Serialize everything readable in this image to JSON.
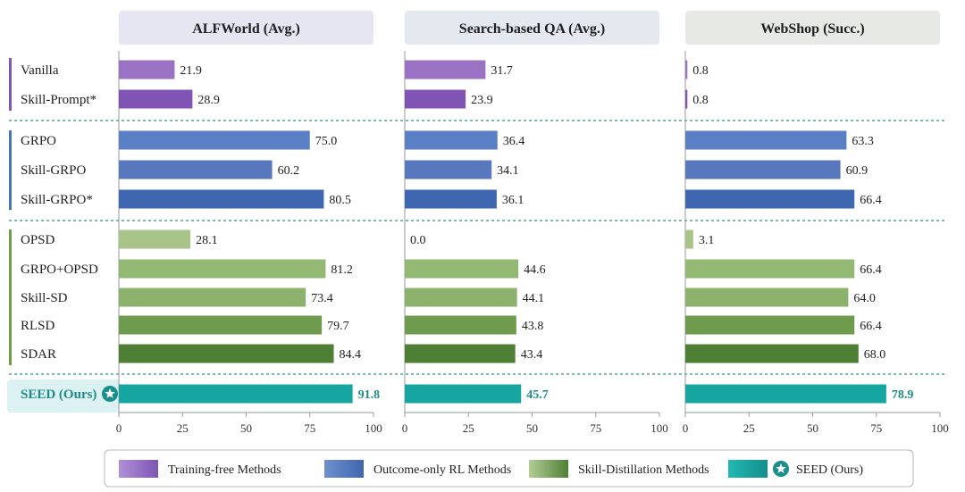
{
  "chart_data": {
    "type": "bar",
    "orientation": "horizontal",
    "methods": [
      {
        "name": "Vanilla",
        "group": "training-free"
      },
      {
        "name": "Skill-Prompt*",
        "group": "training-free"
      },
      {
        "name": "GRPO",
        "group": "outcome-rl"
      },
      {
        "name": "Skill-GRPO",
        "group": "outcome-rl"
      },
      {
        "name": "Skill-GRPO*",
        "group": "outcome-rl"
      },
      {
        "name": "OPSD",
        "group": "skill-distillation"
      },
      {
        "name": "GRPO+OPSD",
        "group": "skill-distillation"
      },
      {
        "name": "Skill-SD",
        "group": "skill-distillation"
      },
      {
        "name": "RLSD",
        "group": "skill-distillation"
      },
      {
        "name": "SDAR",
        "group": "skill-distillation"
      },
      {
        "name": "SEED (Ours)",
        "group": "ours"
      }
    ],
    "panels": [
      {
        "title": "ALFWorld (Avg.)",
        "title_bg": "#e6e6f2",
        "values": [
          21.9,
          28.9,
          75.0,
          60.2,
          80.5,
          28.1,
          81.2,
          73.4,
          79.7,
          84.4,
          91.8
        ],
        "xlim": [
          0,
          100
        ],
        "ticks": [
          0,
          25,
          50,
          75,
          100
        ]
      },
      {
        "title": "Search-based QA (Avg.)",
        "title_bg": "#e4e9ef",
        "values": [
          31.7,
          23.9,
          36.4,
          34.1,
          36.1,
          0.0,
          44.6,
          44.1,
          43.8,
          43.4,
          45.7
        ],
        "xlim": [
          0,
          100
        ],
        "ticks": [
          0,
          25,
          50,
          75,
          100
        ]
      },
      {
        "title": "WebShop (Succ.)",
        "title_bg": "#e6e9e4",
        "values": [
          0.8,
          0.8,
          63.3,
          60.9,
          66.4,
          3.1,
          66.4,
          64.0,
          66.4,
          68.0,
          78.9
        ],
        "xlim": [
          0,
          100
        ],
        "ticks": [
          0,
          25,
          50,
          75,
          100
        ]
      }
    ],
    "bar_colors": [
      "#9a72c4",
      "#8054b5",
      "#5a7fc4",
      "#5878bd",
      "#3f66b0",
      "#a8c489",
      "#93b873",
      "#8db26d",
      "#6e9b4e",
      "#4f7f35",
      "#17a5a2"
    ],
    "group_colors": {
      "training-free": "#7d55b4",
      "outcome-rl": "#4a74b8",
      "skill-distillation": "#6e9a4a",
      "ours": "#1a8f8c"
    },
    "legend": [
      {
        "label": "Training-free Methods",
        "color_from": "#b090d8",
        "color_to": "#7d55b4"
      },
      {
        "label": "Outcome-only RL Methods",
        "color_from": "#7090cc",
        "color_to": "#3f66b0"
      },
      {
        "label": "Skill-Distillation Methods",
        "color_from": "#b3cd95",
        "color_to": "#4f7f35"
      },
      {
        "label": "SEED (Ours)",
        "color_from": "#23b8b4",
        "color_to": "#138f8c",
        "star": true
      }
    ],
    "legend_position": "bottom-center",
    "grid": false
  }
}
